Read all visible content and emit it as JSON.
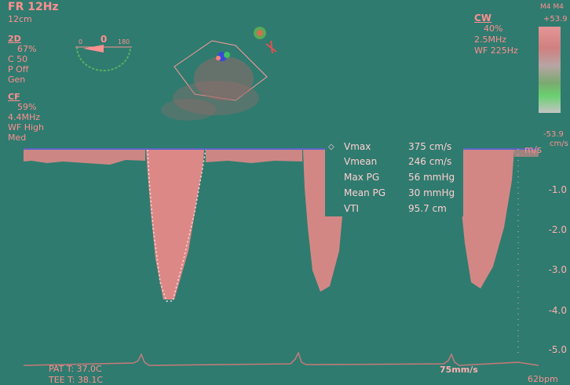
{
  "header": {
    "frame_rate": "FR 12Hz",
    "depth": "12cm",
    "probe": "M4 M4"
  },
  "twod": {
    "title": "2D",
    "gain": "67%",
    "contrast": "C 50",
    "power": "P Off",
    "mode": "Gen"
  },
  "cf": {
    "title": "CF",
    "gain": "59%",
    "freq": "4.4MHz",
    "wall_filter": "WF High",
    "level": "Med"
  },
  "angle_indicator": {
    "left": "0",
    "center": "0",
    "right": "180"
  },
  "cw": {
    "title": "CW",
    "gain": "40%",
    "freq": "2.5MHz",
    "wall_filter": "WF 225Hz"
  },
  "color_bar": {
    "top": "+53.9",
    "bottom": "-53.9",
    "unit": "cm/s"
  },
  "measurements": [
    {
      "label": "Vmax",
      "value": "375 cm/s"
    },
    {
      "label": "Vmean",
      "value": "246 cm/s"
    },
    {
      "label": "Max PG",
      "value": "56 mmHg"
    },
    {
      "label": "Mean PG",
      "value": "30 mmHg"
    },
    {
      "label": "VTI",
      "value": "95.7 cm"
    }
  ],
  "scale": {
    "unit": "m/s",
    "ticks": [
      "-1.0",
      "-2.0",
      "-3.0",
      "-4.0",
      "-5.0"
    ]
  },
  "footer": {
    "pat_temp": "PAT T: 37.0C",
    "tee_temp": "TEE T: 38.1C",
    "sweep": "75mm/s",
    "heart_rate": "62bpm"
  },
  "colors": {
    "background": "#2f7b6f",
    "text": "#ff8f8f",
    "spectrum": "#f08a8a",
    "baseline": "#5a66c8"
  }
}
